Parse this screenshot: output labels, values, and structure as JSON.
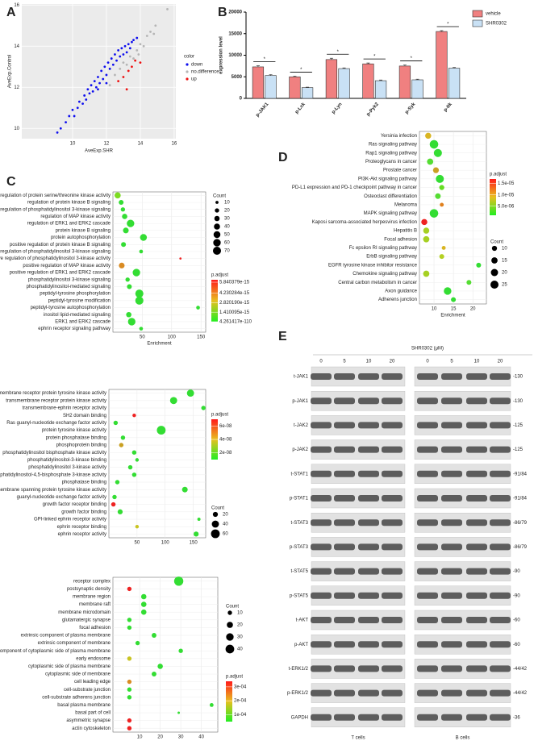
{
  "panel_labels": [
    "A",
    "B",
    "C",
    "D",
    "E"
  ],
  "chart_data": [
    {
      "type": "scatter",
      "xlabel": "AveExp.SHR",
      "ylabel": "AveExp.Control",
      "legend_title": "color",
      "xlim": [
        7,
        16.1
      ],
      "ylim": [
        9.5,
        16.05
      ],
      "xticks": [
        10,
        12,
        14,
        16
      ],
      "yticks": [
        10,
        12,
        14,
        16
      ],
      "grid": true,
      "series": [
        {
          "name": "down",
          "color": "#1010ee",
          "x": [
            9.1,
            9.3,
            9.6,
            9.8,
            10.0,
            10.1,
            10.3,
            10.4,
            10.6,
            10.7,
            10.8,
            10.9,
            11.0,
            11.1,
            11.2,
            11.3,
            11.4,
            11.5,
            11.6,
            11.7,
            11.8,
            11.9,
            12.0,
            12.1,
            12.2,
            12.3,
            12.4,
            12.5,
            12.6,
            12.7,
            12.8,
            12.9,
            13.0,
            13.1,
            13.2,
            13.3,
            13.4,
            13.5,
            12.0,
            11.5,
            13.6,
            13.8
          ],
          "values": [
            9.8,
            10.0,
            10.3,
            10.6,
            10.9,
            10.6,
            11.0,
            11.3,
            11.2,
            11.6,
            11.4,
            11.9,
            11.7,
            12.1,
            11.8,
            12.3,
            12.0,
            12.5,
            12.2,
            12.8,
            12.4,
            13.0,
            12.6,
            13.2,
            12.9,
            13.4,
            13.1,
            13.6,
            13.3,
            13.8,
            13.5,
            13.9,
            13.6,
            14.0,
            13.7,
            14.1,
            13.9,
            14.2,
            12.2,
            11.9,
            14.3,
            14.4
          ]
        },
        {
          "name": "no.difference",
          "color": "#b5b5b5",
          "x": [
            12.2,
            12.5,
            12.8,
            13.0,
            13.2,
            13.4,
            13.6,
            13.8,
            14.0,
            14.2,
            14.4,
            14.6,
            14.8,
            14.9,
            15.6,
            13.9
          ],
          "values": [
            12.1,
            12.6,
            12.9,
            13.2,
            13.1,
            13.5,
            13.4,
            13.8,
            14.1,
            14.0,
            14.5,
            14.7,
            14.6,
            15.0,
            15.8,
            13.6
          ]
        },
        {
          "name": "up",
          "color": "#ee1111",
          "x": [
            12.7,
            13.0,
            13.3,
            13.5,
            13.7,
            13.2,
            14.0
          ],
          "values": [
            12.3,
            12.5,
            12.8,
            13.0,
            13.3,
            11.9,
            13.2
          ]
        }
      ]
    },
    {
      "type": "bar",
      "ylabel": "expression level",
      "categories": [
        "p-JAK1",
        "p-Lck",
        "p-Lyn",
        "p-Pyk2",
        "p-Syk",
        "p-Itk"
      ],
      "ylim": [
        0,
        20000
      ],
      "yticks": [
        0,
        5000,
        10000,
        15000,
        20000
      ],
      "series": [
        {
          "name": "vehicle",
          "color": "#f08080",
          "values": [
            7300,
            5000,
            9000,
            8000,
            7500,
            15500
          ],
          "errors": [
            250,
            150,
            300,
            200,
            250,
            200
          ]
        },
        {
          "name": "SHR0302",
          "color": "#c9e1f5",
          "values": [
            5300,
            2500,
            6900,
            4100,
            4300,
            7000
          ],
          "errors": [
            200,
            100,
            150,
            150,
            150,
            150
          ]
        }
      ],
      "significance": [
        "*",
        "*",
        "*",
        "*",
        "*",
        "*"
      ]
    },
    {
      "type": "dot",
      "xlabel": "Enrichment",
      "xlim": [
        0,
        158
      ],
      "xticks": [
        50,
        100,
        150
      ],
      "categories": [
        "regulation of protein serine/threonine kinase activity",
        "regulation of protein kinase B signaling",
        "regulation of phosphatidylinositol 3-kinase signaling",
        "regulation of MAP kinase activity",
        "regulation of ERK1 and ERK2 cascade",
        "protein kinase B signaling",
        "protein autophosphorylation",
        "positive regulation of protein kinase B signaling",
        "positive regulation of phosphatidylinositol 3-kinase signaling",
        "positive regulation of phosphatidylinositol 3-kinase activity",
        "positive regulation of MAP kinase activity",
        "positive regulation of ERK1 and ERK2 cascade",
        "phosphatidylinositol 3-kinase signaling",
        "phosphatidylinositol-mediated signaling",
        "peptidyl-tyrosine phosphorylation",
        "peptidyl-tyrosine modification",
        "peptidyl-tyrosine autophosphorylation",
        "inositol lipid-mediated signaling",
        "ERK1 and ERK2 cascade",
        "ephrin receptor signaling pathway"
      ],
      "values": [
        8,
        14,
        17,
        20,
        30,
        22,
        52,
        18,
        48,
        115,
        15,
        40,
        25,
        28,
        45,
        45,
        145,
        27,
        32,
        48
      ],
      "sizes": [
        40,
        25,
        20,
        30,
        60,
        35,
        50,
        25,
        15,
        5,
        35,
        60,
        20,
        25,
        70,
        70,
        15,
        30,
        60,
        15
      ],
      "colors": [
        "#7ddc22",
        "#33dd33",
        "#33dd33",
        "#33dd33",
        "#33dd33",
        "#33dd33",
        "#33dd33",
        "#33dd33",
        "#33dd33",
        "#ee2222",
        "#d98b22",
        "#33dd33",
        "#33dd33",
        "#33dd33",
        "#33dd33",
        "#33dd33",
        "#33dd33",
        "#33dd33",
        "#33dd33",
        "#33dd33"
      ],
      "size_legend": {
        "title": "Count",
        "values": [
          10,
          20,
          30,
          40,
          50,
          60,
          70
        ]
      },
      "color_scale": {
        "title": "p.adjust",
        "lim": [
          0,
          6.2e-15
        ],
        "ticks": [
          {
            "value": 5.840379e-15,
            "label": "5.840379e-15"
          },
          {
            "value": 4.230284e-15,
            "label": "4.230284e-15"
          },
          {
            "value": 2.82019e-15,
            "label": "2.820190e-15"
          },
          {
            "value": 1.410095e-15,
            "label": "1.410095e-15"
          },
          {
            "value": 4.261417e-110,
            "label": "4.261417e-110"
          }
        ]
      }
    },
    {
      "type": "dot",
      "xlim": [
        0,
        172
      ],
      "xticks": [
        50,
        100,
        150
      ],
      "categories": [
        "transmembrane receptor protein tyrosine kinase activity",
        "transmembrane receptor protein kinase activity",
        "transmembrane-ephrin receptor activity",
        "SH2 domain binding",
        "Ras guanyl-nucleotide exchange factor activity",
        "protein tyrosine kinase activity",
        "protein phosphatase binding",
        "phosphoprotein binding",
        "phosphatidylinositol bisphosphate kinase activity",
        "phosphatidylinositol-3-kinase binding",
        "phosphatidylinositol 3-kinase activity",
        "phosphatidylinositol-4,5-bisphosphate 3-kinase activity",
        "phosphatase binding",
        "non-membrane spanning protein tyrosine kinase activity",
        "guanyl-nucleotide exchange factor activity",
        "growth factor receptor binding",
        "growth factor binding",
        "GPI-linked ephrin receptor activity",
        "ephrin receptor binding",
        "ephrin receptor activity"
      ],
      "values": [
        145,
        115,
        168,
        45,
        12,
        93,
        25,
        22,
        45,
        50,
        38,
        45,
        15,
        135,
        10,
        8,
        20,
        160,
        50,
        155
      ],
      "sizes": [
        40,
        40,
        15,
        10,
        15,
        60,
        15,
        15,
        15,
        10,
        15,
        15,
        15,
        25,
        15,
        15,
        20,
        8,
        10,
        20
      ],
      "colors": [
        "#33dd33",
        "#33dd33",
        "#33dd33",
        "#ee2222",
        "#33dd33",
        "#33dd33",
        "#33dd33",
        "#c9a022",
        "#33dd33",
        "#33dd33",
        "#33dd33",
        "#33dd33",
        "#33dd33",
        "#33dd33",
        "#33dd33",
        "#ee2222",
        "#33dd33",
        "#33dd33",
        "#c9c422",
        "#33dd33"
      ],
      "size_legend": {
        "title": "Count",
        "values": [
          20,
          40,
          60
        ]
      },
      "color_scale": {
        "title": "p.adjust",
        "lim": [
          1e-08,
          7e-08
        ],
        "ticks": [
          {
            "value": 6e-08,
            "label": "6e-08"
          },
          {
            "value": 4e-08,
            "label": "4e-08"
          },
          {
            "value": 2e-08,
            "label": "2e-08"
          }
        ]
      }
    },
    {
      "type": "dot",
      "xlim": [
        -3,
        48
      ],
      "xticks": [
        10,
        20,
        30,
        40
      ],
      "categories": [
        "receptor complex",
        "postsynaptic density",
        "membrane region",
        "membrane raft",
        "membrane microdomain",
        "glutamatergic synapse",
        "focal adhesion",
        "extrinsic component of plasma membrane",
        "extrinsic component of membrane",
        "extrinsic component of cytoplasmic side of plasma membrane",
        "early endosome",
        "cytoplasmic side of plasma membrane",
        "cytoplasmic side of membrane",
        "cell leading edge",
        "cell-substrate junction",
        "cell-substrate adherens junction",
        "basal plasma membrane",
        "basal part of cell",
        "asymmetric synapse",
        "actin cytoskeleton"
      ],
      "values": [
        29,
        5,
        12,
        12,
        12,
        5,
        5,
        17,
        9,
        30,
        5,
        20,
        17,
        5,
        5,
        5,
        45,
        29,
        5,
        5
      ],
      "sizes": [
        45,
        10,
        15,
        15,
        15,
        10,
        10,
        12,
        10,
        10,
        10,
        15,
        12,
        10,
        10,
        10,
        8,
        3,
        10,
        10
      ],
      "colors": [
        "#33dd33",
        "#ee2222",
        "#33dd33",
        "#33dd33",
        "#33dd33",
        "#33dd33",
        "#33dd33",
        "#33dd33",
        "#33dd33",
        "#33dd33",
        "#c9c422",
        "#33dd33",
        "#33dd33",
        "#d98b22",
        "#33dd33",
        "#33dd33",
        "#33dd33",
        "#33dd33",
        "#ee2222",
        "#ee2222"
      ],
      "size_legend": {
        "title": "Count",
        "values": [
          10,
          20,
          30,
          40
        ]
      },
      "color_scale": {
        "title": "p.adjust",
        "lim": [
          5e-05,
          0.00034
        ],
        "ticks": [
          {
            "value": 0.0003,
            "label": "3e-04"
          },
          {
            "value": 0.0002,
            "label": "2e-04"
          },
          {
            "value": 0.0001,
            "label": "1e-04"
          }
        ]
      }
    },
    {
      "type": "dot",
      "xlabel": "Enrichment",
      "xlim": [
        6.25,
        23.5
      ],
      "xticks": [
        10,
        15,
        20
      ],
      "categories": [
        "Yersinia infection",
        "Ras signaling pathway",
        "Rap1 signaling pathway",
        "Proteoglycans in cancer",
        "Prostate cancer",
        "PI3K-Akt signaling pathway",
        "PD-L1 expression and PD-1 checkpoint pathway in cancer",
        "Osteoclast differentiation",
        "Melanoma",
        "MAPK signaling pathway",
        "Kaposi sarcoma-associated herpesvirus infection",
        "Hepatitis B",
        "Focal adhesion",
        "Fc epsilon RI signaling pathway",
        "ErbB signaling pathway",
        "EGFR tyrosine kinase inhibitor resistance",
        "Chemokine signaling pathway",
        "Central carbon metabolism in cancer",
        "Axon guidance",
        "Adherens junction"
      ],
      "values": [
        8.5,
        10,
        11,
        9,
        10.5,
        11.5,
        12,
        11,
        12,
        10,
        7.5,
        8,
        8,
        12.5,
        12,
        21.5,
        8,
        19,
        13.5,
        15
      ],
      "sizes": [
        14,
        28,
        25,
        15,
        13,
        25,
        10,
        12,
        6,
        28,
        14,
        14,
        15,
        6,
        9,
        9,
        15,
        9,
        22,
        9
      ],
      "colors": [
        "#d9b522",
        "#33dd33",
        "#33dd33",
        "#55dd33",
        "#c9a022",
        "#33dd33",
        "#66dd22",
        "#55dd33",
        "#e0801e",
        "#33dd33",
        "#ee2222",
        "#a6d022",
        "#a6d022",
        "#d9b522",
        "#b4d022",
        "#33dd33",
        "#a6d022",
        "#55dd33",
        "#33dd33",
        "#33dd33"
      ],
      "size_legend": {
        "title": "Count",
        "values": [
          10,
          15,
          20,
          25
        ]
      },
      "color_scale": {
        "title": "p.adjust",
        "lim": [
          1e-06,
          1.7e-05
        ],
        "ticks": [
          {
            "value": 1.5e-05,
            "label": "1.5e-05"
          },
          {
            "value": 1e-05,
            "label": "1.0e-05"
          },
          {
            "value": 5e-06,
            "label": "5.0e-06"
          }
        ]
      }
    }
  ],
  "blot": {
    "title": "SHR0302 (μM)",
    "lanes": [
      "0",
      "5",
      "10",
      "20",
      "0",
      "5",
      "10",
      "20"
    ],
    "groups": [
      "T cells",
      "B cells"
    ],
    "rows": [
      {
        "label": "t-JAK1",
        "size": "-130"
      },
      {
        "label": "p-JAK1",
        "size": "-130"
      },
      {
        "label": "t-JAK2",
        "size": "-125"
      },
      {
        "label": "p-JAK2",
        "size": "-125"
      },
      {
        "label": "t-STAT1",
        "size": "-91/84"
      },
      {
        "label": "p-STAT1",
        "size": "-91/84"
      },
      {
        "label": "t-STAT3",
        "size": "-86/79"
      },
      {
        "label": "p-STAT3",
        "size": "-86/79"
      },
      {
        "label": "t-STAT5",
        "size": "-90"
      },
      {
        "label": "p-STAT5",
        "size": "-90"
      },
      {
        "label": "t-AKT",
        "size": "-60"
      },
      {
        "label": "p-AKT",
        "size": "-60"
      },
      {
        "label": "t-ERK1/2",
        "size": "-44/42"
      },
      {
        "label": "p-ERK1/2",
        "size": "-44/42"
      },
      {
        "label": "GAPDH",
        "size": "-36"
      }
    ]
  }
}
